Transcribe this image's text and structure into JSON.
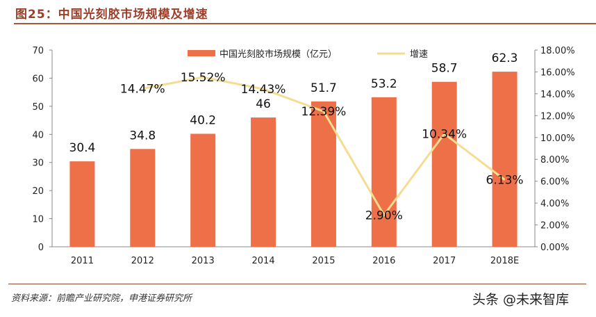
{
  "title": "图25：中国光刻胶市场规模及增速",
  "source": "资料来源：前瞻产业研究院，申港证券研究所",
  "watermark": "头条 @未来智库",
  "chart_data": {
    "type": "bar+line",
    "categories": [
      "2011",
      "2012",
      "2013",
      "2014",
      "2015",
      "2016",
      "2017",
      "2018E"
    ],
    "series": [
      {
        "name": "中国光刻胶市场规模（亿元）",
        "type": "bar",
        "axis": "left",
        "color": "#ed7049",
        "values": [
          30.4,
          34.8,
          40.2,
          46,
          51.7,
          53.2,
          58.7,
          62.3
        ],
        "labels": [
          "30.4",
          "34.8",
          "40.2",
          "46",
          "51.7",
          "53.2",
          "58.7",
          "62.3"
        ]
      },
      {
        "name": "增速",
        "type": "line",
        "axis": "right",
        "color": "#f5dc91",
        "values": [
          null,
          14.47,
          15.52,
          14.43,
          12.39,
          2.9,
          10.34,
          6.13
        ],
        "labels": [
          "",
          "14.47%",
          "15.52%",
          "14.43%",
          "12.39%",
          "2.90%",
          "10.34%",
          "6.13%"
        ]
      }
    ],
    "left_axis": {
      "range": [
        0,
        70
      ],
      "ticks": [
        "0",
        "10",
        "20",
        "30",
        "40",
        "50",
        "60",
        "70"
      ]
    },
    "right_axis": {
      "range": [
        0,
        18
      ],
      "ticks": [
        "0.00%",
        "2.00%",
        "4.00%",
        "6.00%",
        "8.00%",
        "10.00%",
        "12.00%",
        "14.00%",
        "16.00%",
        "18.00%"
      ]
    },
    "legend": "top",
    "grid": false
  }
}
